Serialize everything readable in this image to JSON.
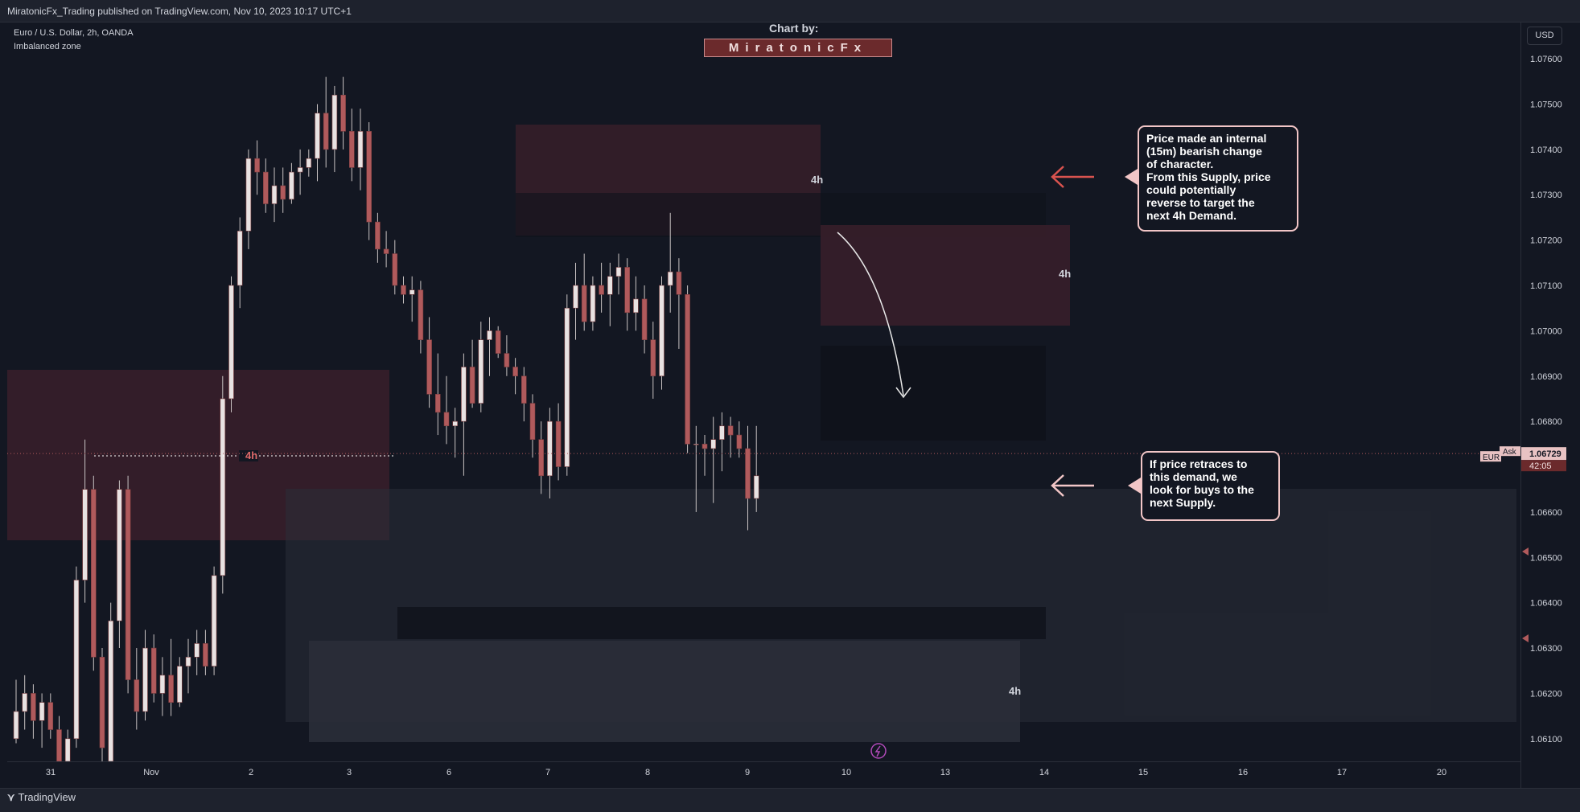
{
  "header": {
    "publisher_line": "MiratonicFx_Trading published on TradingView.com, Nov 10, 2023 10:17 UTC+1"
  },
  "legend": {
    "symbol_line": "Euro / U.S. Dollar, 2h, OANDA",
    "indicator_line": "Imbalanced zone"
  },
  "watermark": {
    "chart_by": "Chart by:",
    "author": "MiratonicFx"
  },
  "price_axis": {
    "currency_button": "USD",
    "ticks": [
      "1.07600",
      "1.07500",
      "1.07400",
      "1.07300",
      "1.07200",
      "1.07100",
      "1.07000",
      "1.06900",
      "1.06800",
      "1.06600",
      "1.06500",
      "1.06400",
      "1.06300",
      "1.06200",
      "1.06100"
    ],
    "tick_values": [
      1.076,
      1.075,
      1.074,
      1.073,
      1.072,
      1.071,
      1.07,
      1.069,
      1.068,
      1.066,
      1.065,
      1.064,
      1.063,
      1.062,
      1.061
    ],
    "current_price": "1.06729",
    "countdown": "42:05",
    "ask_label": "Ask",
    "symbol_short": "EUR"
  },
  "time_axis": {
    "ticks": [
      "31",
      "Nov",
      "2",
      "3",
      "6",
      "7",
      "8",
      "9",
      "10",
      "13",
      "14",
      "15",
      "16",
      "17",
      "20"
    ]
  },
  "annotations": {
    "supply_note": "Price made an internal\n(15m) bearish change\nof character.\nFrom this Supply, price\ncould potentially\nreverse to target the\nnext 4h Demand.",
    "demand_note": "If price retraces to\nthis demand, we\nlook for buys to the\nnext Supply.",
    "zone_labels": [
      "4h",
      "4h",
      "4h",
      "4h"
    ]
  },
  "footer": {
    "brand": "TradingView"
  },
  "colors": {
    "background": "#131722",
    "bull_candle": "#e8e2e2",
    "bear_candle": "#b05a5c",
    "supply_zone": "#3a1f2a",
    "demand_zone": "#2a2e39",
    "arrow_red": "#d9534f",
    "arrow_pink": "#f2c6c7"
  },
  "chart_data": {
    "type": "candlestick",
    "title": "Euro / U.S. Dollar, 2h, OANDA",
    "ylim": [
      1.0605,
      1.0768
    ],
    "candles": [
      {
        "o": 1.061,
        "h": 1.0623,
        "l": 1.0609,
        "c": 1.0616
      },
      {
        "o": 1.0616,
        "h": 1.0624,
        "l": 1.0612,
        "c": 1.062
      },
      {
        "o": 1.062,
        "h": 1.0622,
        "l": 1.061,
        "c": 1.0614
      },
      {
        "o": 1.0614,
        "h": 1.062,
        "l": 1.0608,
        "c": 1.0618
      },
      {
        "o": 1.0618,
        "h": 1.062,
        "l": 1.061,
        "c": 1.0612
      },
      {
        "o": 1.0612,
        "h": 1.0615,
        "l": 1.06,
        "c": 1.0604
      },
      {
        "o": 1.06,
        "h": 1.0612,
        "l": 1.0598,
        "c": 1.061
      },
      {
        "o": 1.061,
        "h": 1.0648,
        "l": 1.0608,
        "c": 1.0645
      },
      {
        "o": 1.0645,
        "h": 1.0676,
        "l": 1.064,
        "c": 1.0665
      },
      {
        "o": 1.0665,
        "h": 1.0668,
        "l": 1.0625,
        "c": 1.0628
      },
      {
        "o": 1.0628,
        "h": 1.063,
        "l": 1.0605,
        "c": 1.0608
      },
      {
        "o": 1.054,
        "h": 1.064,
        "l": 1.0535,
        "c": 1.0636
      },
      {
        "o": 1.0636,
        "h": 1.0667,
        "l": 1.063,
        "c": 1.0665
      },
      {
        "o": 1.0665,
        "h": 1.0668,
        "l": 1.062,
        "c": 1.0623
      },
      {
        "o": 1.0623,
        "h": 1.063,
        "l": 1.0612,
        "c": 1.0616
      },
      {
        "o": 1.0616,
        "h": 1.0634,
        "l": 1.0614,
        "c": 1.063
      },
      {
        "o": 1.063,
        "h": 1.0633,
        "l": 1.0618,
        "c": 1.062
      },
      {
        "o": 1.062,
        "h": 1.0628,
        "l": 1.0615,
        "c": 1.0624
      },
      {
        "o": 1.0624,
        "h": 1.0632,
        "l": 1.0615,
        "c": 1.0618
      },
      {
        "o": 1.0618,
        "h": 1.0628,
        "l": 1.0617,
        "c": 1.0626
      },
      {
        "o": 1.0626,
        "h": 1.0632,
        "l": 1.062,
        "c": 1.0628
      },
      {
        "o": 1.0628,
        "h": 1.0634,
        "l": 1.0624,
        "c": 1.0631
      },
      {
        "o": 1.0631,
        "h": 1.0634,
        "l": 1.0624,
        "c": 1.0626
      },
      {
        "o": 1.0626,
        "h": 1.0648,
        "l": 1.0624,
        "c": 1.0646
      },
      {
        "o": 1.0646,
        "h": 1.069,
        "l": 1.0642,
        "c": 1.0685
      },
      {
        "o": 1.0685,
        "h": 1.0712,
        "l": 1.0682,
        "c": 1.071
      },
      {
        "o": 1.071,
        "h": 1.0725,
        "l": 1.0705,
        "c": 1.0722
      },
      {
        "o": 1.0722,
        "h": 1.074,
        "l": 1.0718,
        "c": 1.0738
      },
      {
        "o": 1.0738,
        "h": 1.0742,
        "l": 1.073,
        "c": 1.0735
      },
      {
        "o": 1.0735,
        "h": 1.0738,
        "l": 1.0726,
        "c": 1.0728
      },
      {
        "o": 1.0728,
        "h": 1.0736,
        "l": 1.0724,
        "c": 1.0732
      },
      {
        "o": 1.0732,
        "h": 1.0736,
        "l": 1.0726,
        "c": 1.0729
      },
      {
        "o": 1.0729,
        "h": 1.0737,
        "l": 1.0728,
        "c": 1.0735
      },
      {
        "o": 1.0735,
        "h": 1.074,
        "l": 1.073,
        "c": 1.0736
      },
      {
        "o": 1.0736,
        "h": 1.074,
        "l": 1.0734,
        "c": 1.0738
      },
      {
        "o": 1.0738,
        "h": 1.075,
        "l": 1.0733,
        "c": 1.0748
      },
      {
        "o": 1.0748,
        "h": 1.0756,
        "l": 1.0736,
        "c": 1.074
      },
      {
        "o": 1.074,
        "h": 1.0754,
        "l": 1.0735,
        "c": 1.0752
      },
      {
        "o": 1.0752,
        "h": 1.0756,
        "l": 1.074,
        "c": 1.0744
      },
      {
        "o": 1.0744,
        "h": 1.0749,
        "l": 1.0733,
        "c": 1.0736
      },
      {
        "o": 1.0736,
        "h": 1.0749,
        "l": 1.0731,
        "c": 1.0744
      },
      {
        "o": 1.0744,
        "h": 1.0746,
        "l": 1.072,
        "c": 1.0724
      },
      {
        "o": 1.0724,
        "h": 1.0726,
        "l": 1.0715,
        "c": 1.0718
      },
      {
        "o": 1.0718,
        "h": 1.0722,
        "l": 1.0714,
        "c": 1.0717
      },
      {
        "o": 1.0717,
        "h": 1.072,
        "l": 1.0708,
        "c": 1.071
      },
      {
        "o": 1.071,
        "h": 1.0712,
        "l": 1.0706,
        "c": 1.0708
      },
      {
        "o": 1.0708,
        "h": 1.0712,
        "l": 1.0702,
        "c": 1.0709
      },
      {
        "o": 1.0709,
        "h": 1.0711,
        "l": 1.0695,
        "c": 1.0698
      },
      {
        "o": 1.0698,
        "h": 1.0703,
        "l": 1.0683,
        "c": 1.0686
      },
      {
        "o": 1.0686,
        "h": 1.0695,
        "l": 1.0677,
        "c": 1.0682
      },
      {
        "o": 1.0682,
        "h": 1.069,
        "l": 1.0675,
        "c": 1.0679
      },
      {
        "o": 1.0679,
        "h": 1.0683,
        "l": 1.0672,
        "c": 1.068
      },
      {
        "o": 1.068,
        "h": 1.0695,
        "l": 1.0668,
        "c": 1.0692
      },
      {
        "o": 1.0692,
        "h": 1.0698,
        "l": 1.0683,
        "c": 1.0684
      },
      {
        "o": 1.0684,
        "h": 1.0702,
        "l": 1.0682,
        "c": 1.0698
      },
      {
        "o": 1.0698,
        "h": 1.0703,
        "l": 1.069,
        "c": 1.07
      },
      {
        "o": 1.07,
        "h": 1.0701,
        "l": 1.0694,
        "c": 1.0695
      },
      {
        "o": 1.0695,
        "h": 1.0699,
        "l": 1.069,
        "c": 1.0692
      },
      {
        "o": 1.0692,
        "h": 1.0694,
        "l": 1.0686,
        "c": 1.069
      },
      {
        "o": 1.069,
        "h": 1.0692,
        "l": 1.068,
        "c": 1.0684
      },
      {
        "o": 1.0684,
        "h": 1.0686,
        "l": 1.0672,
        "c": 1.0676
      },
      {
        "o": 1.0676,
        "h": 1.068,
        "l": 1.0664,
        "c": 1.0668
      },
      {
        "o": 1.0668,
        "h": 1.0683,
        "l": 1.0663,
        "c": 1.068
      },
      {
        "o": 1.068,
        "h": 1.0684,
        "l": 1.0667,
        "c": 1.067
      },
      {
        "o": 1.067,
        "h": 1.0708,
        "l": 1.0668,
        "c": 1.0705
      },
      {
        "o": 1.0705,
        "h": 1.0715,
        "l": 1.0698,
        "c": 1.071
      },
      {
        "o": 1.071,
        "h": 1.0717,
        "l": 1.07,
        "c": 1.0702
      },
      {
        "o": 1.0702,
        "h": 1.0712,
        "l": 1.07,
        "c": 1.071
      },
      {
        "o": 1.071,
        "h": 1.0715,
        "l": 1.0704,
        "c": 1.0708
      },
      {
        "o": 1.0708,
        "h": 1.0715,
        "l": 1.0701,
        "c": 1.0712
      },
      {
        "o": 1.0712,
        "h": 1.0717,
        "l": 1.0708,
        "c": 1.0714
      },
      {
        "o": 1.0714,
        "h": 1.0716,
        "l": 1.07,
        "c": 1.0704
      },
      {
        "o": 1.0704,
        "h": 1.0712,
        "l": 1.07,
        "c": 1.0707
      },
      {
        "o": 1.0707,
        "h": 1.071,
        "l": 1.0695,
        "c": 1.0698
      },
      {
        "o": 1.0698,
        "h": 1.0702,
        "l": 1.0685,
        "c": 1.069
      },
      {
        "o": 1.069,
        "h": 1.0712,
        "l": 1.0687,
        "c": 1.071
      },
      {
        "o": 1.071,
        "h": 1.0726,
        "l": 1.0704,
        "c": 1.0713
      },
      {
        "o": 1.0713,
        "h": 1.0716,
        "l": 1.0696,
        "c": 1.0708
      },
      {
        "o": 1.0708,
        "h": 1.071,
        "l": 1.0673,
        "c": 1.0675
      },
      {
        "o": 1.0675,
        "h": 1.0679,
        "l": 1.066,
        "c": 1.0675
      },
      {
        "o": 1.0675,
        "h": 1.0677,
        "l": 1.0668,
        "c": 1.0674
      },
      {
        "o": 1.0674,
        "h": 1.0681,
        "l": 1.0662,
        "c": 1.0676
      },
      {
        "o": 1.0676,
        "h": 1.0682,
        "l": 1.0669,
        "c": 1.0679
      },
      {
        "o": 1.0679,
        "h": 1.0681,
        "l": 1.0672,
        "c": 1.0677
      },
      {
        "o": 1.0677,
        "h": 1.068,
        "l": 1.0672,
        "c": 1.0674
      },
      {
        "o": 1.0674,
        "h": 1.0679,
        "l": 1.0656,
        "c": 1.0663
      },
      {
        "o": 1.0663,
        "h": 1.0679,
        "l": 1.066,
        "c": 1.0668
      }
    ]
  }
}
